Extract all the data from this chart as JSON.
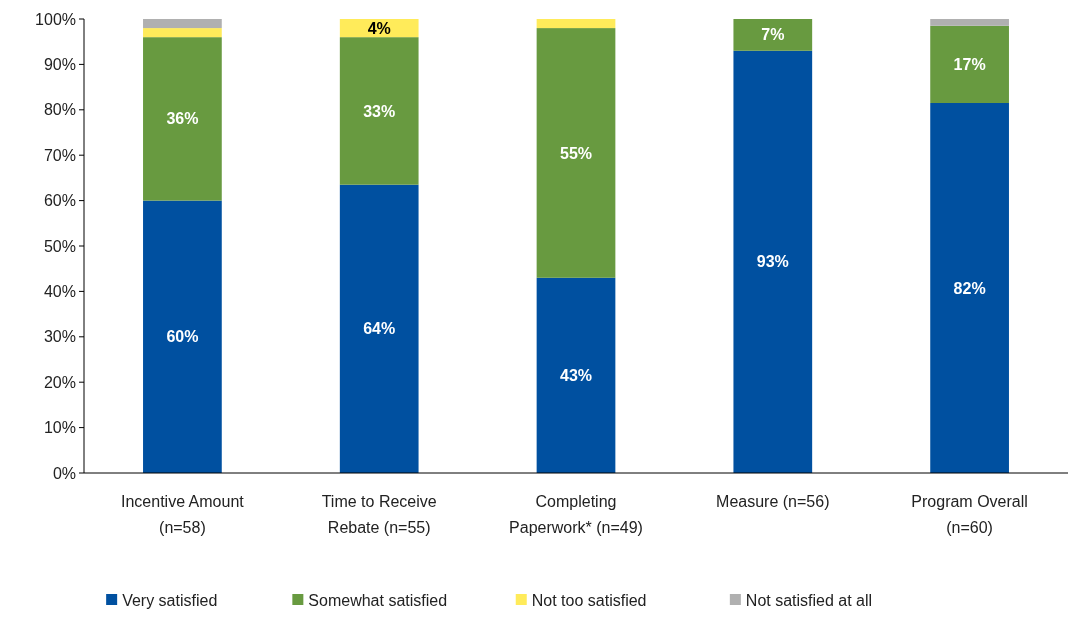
{
  "chart_data": {
    "type": "bar",
    "stacked": true,
    "categories": [
      "Incentive Amount (n=58)",
      "Time to Receive Rebate (n=55)",
      "Completing Paperwork* (n=49)",
      "Measure (n=56)",
      "Program Overall (n=60)"
    ],
    "series": [
      {
        "name": "Very satisfied",
        "color": "#0050a0",
        "values": [
          60,
          63.5,
          43,
          93,
          81.5
        ],
        "value_labels": [
          "60%",
          "64%",
          "43%",
          "93%",
          "82%"
        ]
      },
      {
        "name": "Somewhat satisfied",
        "color": "#689a40",
        "values": [
          36,
          32.5,
          55,
          7,
          17
        ],
        "value_labels": [
          "36%",
          "33%",
          "55%",
          "7%",
          "17%"
        ]
      },
      {
        "name": "Not too satisfied",
        "color": "#ffeb5a",
        "values": [
          2,
          4,
          2,
          null,
          null
        ],
        "value_labels": [
          null,
          "4%",
          null,
          null,
          null
        ]
      },
      {
        "name": "Not satisfied at all",
        "color": "#b0b0b0",
        "values": [
          2,
          null,
          null,
          null,
          1.5
        ],
        "value_labels": [
          null,
          null,
          null,
          null,
          null
        ]
      }
    ],
    "ylim": [
      0,
      100
    ],
    "yticks": [
      {
        "value": 0,
        "label": "0%"
      },
      {
        "value": 10,
        "label": "10%"
      },
      {
        "value": 20,
        "label": "20%"
      },
      {
        "value": 30,
        "label": "30%"
      },
      {
        "value": 40,
        "label": "40%"
      },
      {
        "value": 50,
        "label": "50%"
      },
      {
        "value": 60,
        "label": "60%"
      },
      {
        "value": 70,
        "label": "70%"
      },
      {
        "value": 80,
        "label": "80%"
      },
      {
        "value": 90,
        "label": "90%"
      },
      {
        "value": 100,
        "label": "100%"
      }
    ],
    "grid": false,
    "legend": "bottom"
  }
}
